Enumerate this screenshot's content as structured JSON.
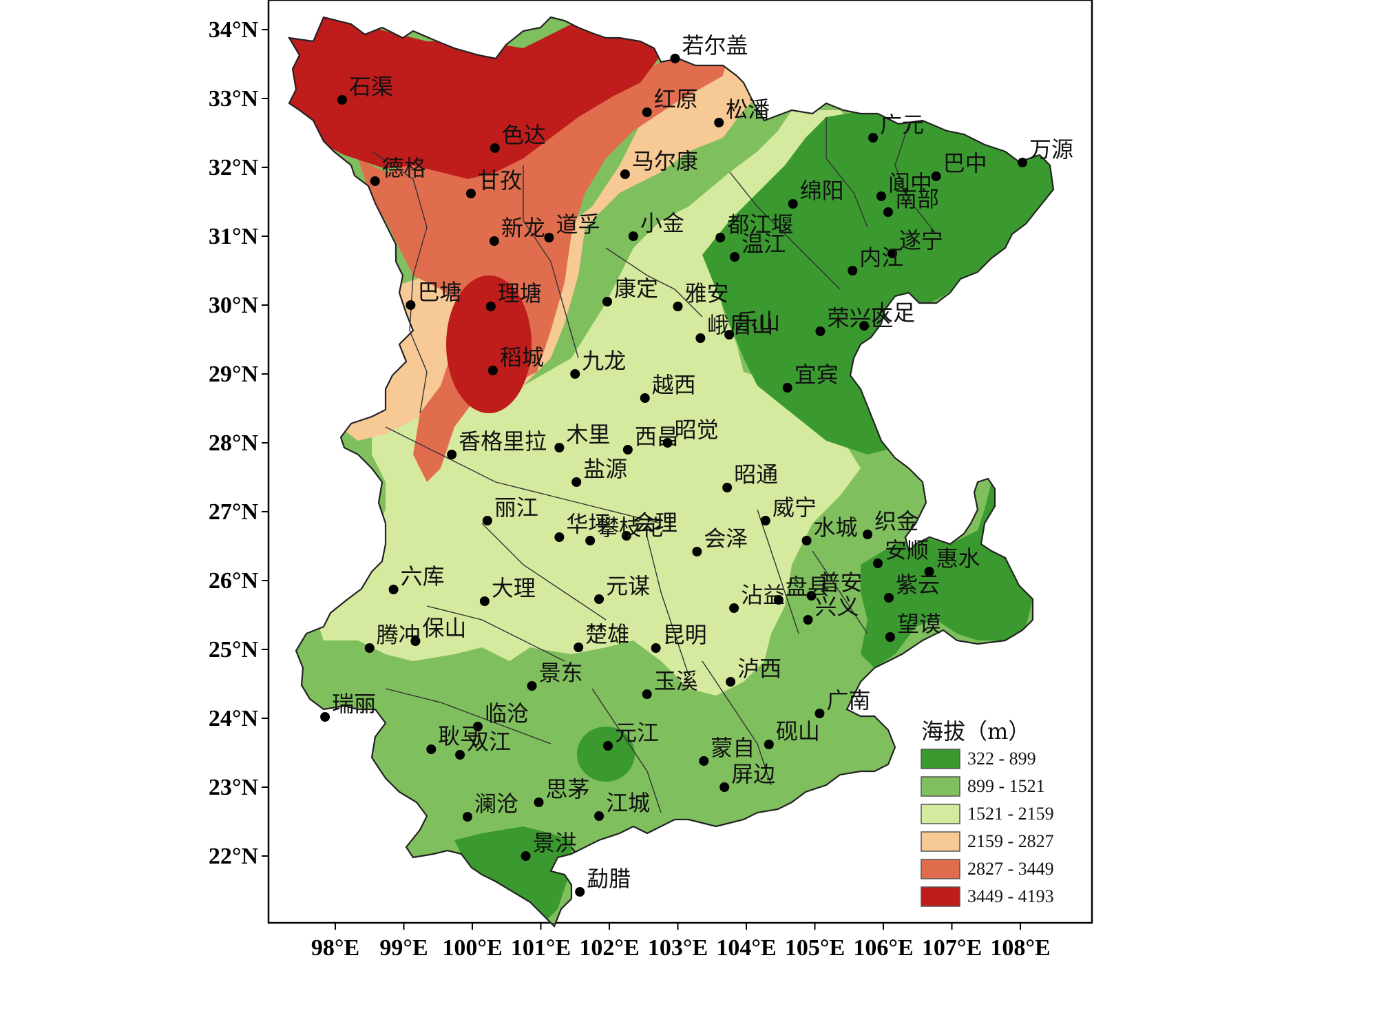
{
  "map": {
    "x_ticks": [
      "98°E",
      "99°E",
      "100°E",
      "101°E",
      "102°E",
      "103°E",
      "104°E",
      "105°E",
      "106°E",
      "107°E",
      "108°E"
    ],
    "y_ticks": [
      "34°N",
      "33°N",
      "32°N",
      "31°N",
      "30°N",
      "29°N",
      "28°N",
      "27°N",
      "26°N",
      "25°N",
      "24°N",
      "23°N",
      "22°N"
    ],
    "colors": {
      "c1": "#3a9a2f",
      "c2": "#7fbf5e",
      "c3": "#d6ea9f",
      "c4": "#f7c995",
      "c5": "#e06d4e",
      "c6": "#bf1c1c"
    },
    "legend": {
      "title": "海拔（m）",
      "classes": [
        {
          "label": "322  -  899",
          "color": "#3a9a2f"
        },
        {
          "label": "899  -  1521",
          "color": "#7fbf5e"
        },
        {
          "label": "1521  -  2159",
          "color": "#d6ea9f"
        },
        {
          "label": "2159  -  2827",
          "color": "#f7c995"
        },
        {
          "label": "2827  -  3449",
          "color": "#e06d4e"
        },
        {
          "label": "3449  -  4193",
          "color": "#bf1c1c"
        }
      ]
    },
    "cities": [
      {
        "name": "若尔盖",
        "lon": 102.96,
        "lat": 33.58
      },
      {
        "name": "石渠",
        "lon": 98.1,
        "lat": 32.98
      },
      {
        "name": "红原",
        "lon": 102.55,
        "lat": 32.8
      },
      {
        "name": "松潘",
        "lon": 103.6,
        "lat": 32.65
      },
      {
        "name": "色达",
        "lon": 100.33,
        "lat": 32.28
      },
      {
        "name": "广元",
        "lon": 105.85,
        "lat": 32.43
      },
      {
        "name": "万源",
        "lon": 108.03,
        "lat": 32.07
      },
      {
        "name": "德格",
        "lon": 98.58,
        "lat": 31.8
      },
      {
        "name": "甘孜",
        "lon": 99.98,
        "lat": 31.62
      },
      {
        "name": "马尔康",
        "lon": 102.23,
        "lat": 31.9
      },
      {
        "name": "阆中",
        "lon": 105.97,
        "lat": 31.58
      },
      {
        "name": "巴中",
        "lon": 106.77,
        "lat": 31.87
      },
      {
        "name": "绵阳",
        "lon": 104.68,
        "lat": 31.47
      },
      {
        "name": "南部",
        "lon": 106.07,
        "lat": 31.35
      },
      {
        "name": "新龙",
        "lon": 100.32,
        "lat": 30.93
      },
      {
        "name": "道孚",
        "lon": 101.12,
        "lat": 30.98
      },
      {
        "name": "小金",
        "lon": 102.35,
        "lat": 31.0
      },
      {
        "name": "温江",
        "lon": 103.83,
        "lat": 30.7
      },
      {
        "name": "都江堰",
        "lon": 103.62,
        "lat": 30.98
      },
      {
        "name": "遂宁",
        "lon": 106.13,
        "lat": 30.75
      },
      {
        "name": "巴塘",
        "lon": 99.1,
        "lat": 30.0
      },
      {
        "name": "理塘",
        "lon": 100.27,
        "lat": 29.98
      },
      {
        "name": "康定",
        "lon": 101.97,
        "lat": 30.05
      },
      {
        "name": "雅安",
        "lon": 103.0,
        "lat": 29.98
      },
      {
        "name": "内江",
        "lon": 105.55,
        "lat": 30.5
      },
      {
        "name": "峨眉山",
        "lon": 103.33,
        "lat": 29.52
      },
      {
        "name": "乐山",
        "lon": 103.75,
        "lat": 29.57
      },
      {
        "name": "大足",
        "lon": 105.72,
        "lat": 29.7
      },
      {
        "name": "荣兴区",
        "lon": 105.08,
        "lat": 29.62
      },
      {
        "name": "稻城",
        "lon": 100.3,
        "lat": 29.05
      },
      {
        "name": "九龙",
        "lon": 101.5,
        "lat": 29.0
      },
      {
        "name": "宜宾",
        "lon": 104.6,
        "lat": 28.8
      },
      {
        "name": "越西",
        "lon": 102.52,
        "lat": 28.65
      },
      {
        "name": "香格里拉",
        "lon": 99.7,
        "lat": 27.83
      },
      {
        "name": "木里",
        "lon": 101.27,
        "lat": 27.93
      },
      {
        "name": "西昌",
        "lon": 102.27,
        "lat": 27.9
      },
      {
        "name": "盐源",
        "lon": 101.52,
        "lat": 27.43
      },
      {
        "name": "昭觉",
        "lon": 102.85,
        "lat": 28.0
      },
      {
        "name": "昭通",
        "lon": 103.72,
        "lat": 27.35
      },
      {
        "name": "丽江",
        "lon": 100.22,
        "lat": 26.87
      },
      {
        "name": "会理",
        "lon": 102.25,
        "lat": 26.65
      },
      {
        "name": "华坪",
        "lon": 101.27,
        "lat": 26.63
      },
      {
        "name": "攀枝花",
        "lon": 101.72,
        "lat": 26.58
      },
      {
        "name": "会泽",
        "lon": 103.28,
        "lat": 26.42
      },
      {
        "name": "威宁",
        "lon": 104.28,
        "lat": 26.87
      },
      {
        "name": "水城",
        "lon": 104.88,
        "lat": 26.58
      },
      {
        "name": "织金",
        "lon": 105.77,
        "lat": 26.67
      },
      {
        "name": "安顺",
        "lon": 105.92,
        "lat": 26.25
      },
      {
        "name": "惠水",
        "lon": 106.67,
        "lat": 26.13
      },
      {
        "name": "六库",
        "lon": 98.85,
        "lat": 25.87
      },
      {
        "name": "大理",
        "lon": 100.18,
        "lat": 25.7
      },
      {
        "name": "元谋",
        "lon": 101.85,
        "lat": 25.73
      },
      {
        "name": "沾益",
        "lon": 103.82,
        "lat": 25.6
      },
      {
        "name": "普安",
        "lon": 104.95,
        "lat": 25.78
      },
      {
        "name": "紫云",
        "lon": 106.08,
        "lat": 25.75
      },
      {
        "name": "盘县",
        "lon": 104.47,
        "lat": 25.72
      },
      {
        "name": "兴义",
        "lon": 104.9,
        "lat": 25.43
      },
      {
        "name": "望谟",
        "lon": 106.1,
        "lat": 25.18
      },
      {
        "name": "腾冲",
        "lon": 98.5,
        "lat": 25.02
      },
      {
        "name": "保山",
        "lon": 99.17,
        "lat": 25.12
      },
      {
        "name": "楚雄",
        "lon": 101.55,
        "lat": 25.03
      },
      {
        "name": "昆明",
        "lon": 102.68,
        "lat": 25.02
      },
      {
        "name": "泸西",
        "lon": 103.77,
        "lat": 24.53
      },
      {
        "name": "景东",
        "lon": 100.87,
        "lat": 24.47
      },
      {
        "name": "玉溪",
        "lon": 102.55,
        "lat": 24.35
      },
      {
        "name": "广南",
        "lon": 105.07,
        "lat": 24.07
      },
      {
        "name": "瑞丽",
        "lon": 97.85,
        "lat": 24.02
      },
      {
        "name": "临沧",
        "lon": 100.08,
        "lat": 23.88
      },
      {
        "name": "耿马",
        "lon": 99.4,
        "lat": 23.55
      },
      {
        "name": "双江",
        "lon": 99.82,
        "lat": 23.47
      },
      {
        "name": "元江",
        "lon": 101.98,
        "lat": 23.6
      },
      {
        "name": "蒙自",
        "lon": 103.38,
        "lat": 23.38
      },
      {
        "name": "砚山",
        "lon": 104.33,
        "lat": 23.62
      },
      {
        "name": "屏边",
        "lon": 103.68,
        "lat": 23.0
      },
      {
        "name": "思茅",
        "lon": 100.97,
        "lat": 22.78
      },
      {
        "name": "江城",
        "lon": 101.85,
        "lat": 22.58
      },
      {
        "name": "澜沧",
        "lon": 99.93,
        "lat": 22.57
      },
      {
        "name": "景洪",
        "lon": 100.78,
        "lat": 22.0
      },
      {
        "name": "勐腊",
        "lon": 101.57,
        "lat": 21.48
      }
    ]
  }
}
